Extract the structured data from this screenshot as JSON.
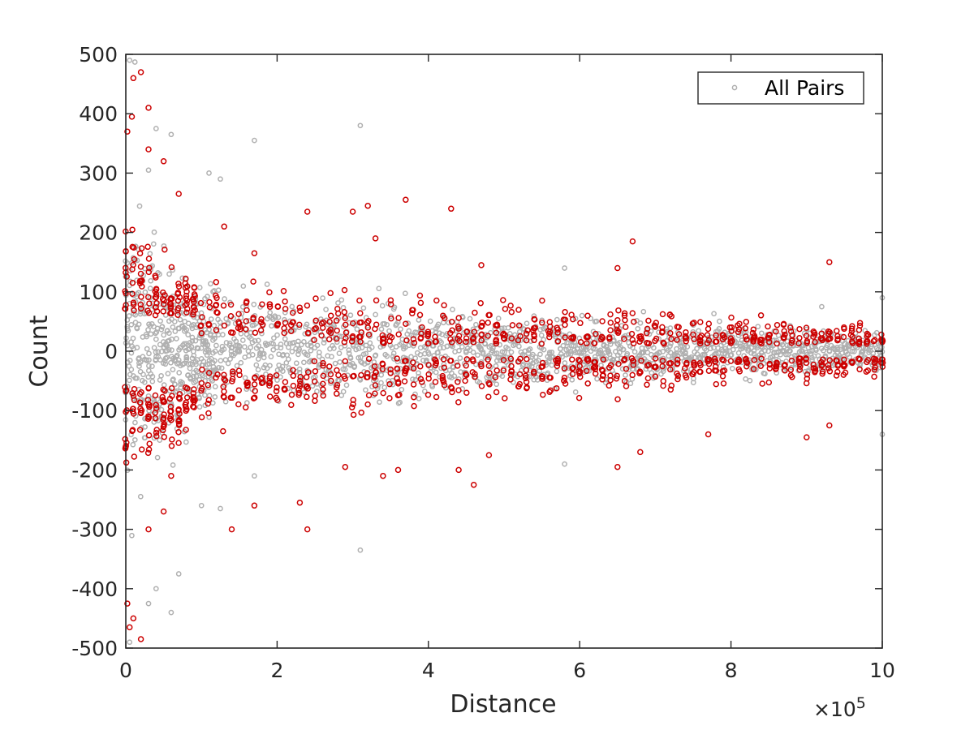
{
  "chart_data": {
    "type": "scatter",
    "title": "",
    "xlabel": "Distance",
    "ylabel": "Count",
    "xlim": [
      0,
      1000000
    ],
    "ylim": [
      -500,
      500
    ],
    "x_ticks": [
      0,
      200000,
      400000,
      600000,
      800000,
      1000000
    ],
    "x_tick_labels": [
      "0",
      "2",
      "4",
      "6",
      "8",
      "10"
    ],
    "x_exponent_label": {
      "base": "×10",
      "power": "5"
    },
    "y_ticks": [
      -500,
      -400,
      -300,
      -200,
      -100,
      0,
      100,
      200,
      300,
      400,
      500
    ],
    "y_tick_labels": [
      "-500",
      "-400",
      "-300",
      "-200",
      "-100",
      "0",
      "100",
      "200",
      "300",
      "400",
      "500"
    ],
    "grid": false,
    "box": true,
    "legend": {
      "position": "top-right",
      "entries": [
        "All Pairs"
      ]
    },
    "series": [
      {
        "name": "All Pairs",
        "marker": "circle-open",
        "color": "#b0b0b0",
        "description_band": "dense symmetric cloud around 0 whose spread narrows with distance",
        "band_envelope": [
          [
            0,
            280
          ],
          [
            50000,
            160
          ],
          [
            100000,
            110
          ],
          [
            200000,
            90
          ],
          [
            400000,
            75
          ],
          [
            600000,
            55
          ],
          [
            800000,
            45
          ],
          [
            1000000,
            35
          ]
        ],
        "outliers": [
          [
            5000,
            490
          ],
          [
            12000,
            487
          ],
          [
            30000,
            305
          ],
          [
            40000,
            375
          ],
          [
            60000,
            365
          ],
          [
            110000,
            300
          ],
          [
            125000,
            290
          ],
          [
            170000,
            355
          ],
          [
            310000,
            380
          ],
          [
            580000,
            140
          ],
          [
            920000,
            75
          ],
          [
            1000000,
            90
          ],
          [
            5000,
            -490
          ],
          [
            30000,
            -425
          ],
          [
            40000,
            -400
          ],
          [
            60000,
            -440
          ],
          [
            70000,
            -375
          ],
          [
            100000,
            -260
          ],
          [
            125000,
            -265
          ],
          [
            170000,
            -210
          ],
          [
            310000,
            -335
          ],
          [
            580000,
            -190
          ],
          [
            1000000,
            -140
          ]
        ]
      },
      {
        "name": "",
        "marker": "circle-open",
        "color": "#cc0000",
        "description_band": "subset of pairs forming vertical clusters; gap near 0 at small distance",
        "band_envelope": [
          [
            0,
            200
          ],
          [
            50000,
            150
          ],
          [
            100000,
            100
          ],
          [
            200000,
            90
          ],
          [
            400000,
            80
          ],
          [
            600000,
            60
          ],
          [
            800000,
            50
          ],
          [
            1000000,
            40
          ]
        ],
        "outliers": [
          [
            2000,
            370
          ],
          [
            8000,
            395
          ],
          [
            10000,
            460
          ],
          [
            20000,
            470
          ],
          [
            30000,
            410
          ],
          [
            30000,
            340
          ],
          [
            50000,
            320
          ],
          [
            70000,
            265
          ],
          [
            130000,
            210
          ],
          [
            170000,
            165
          ],
          [
            240000,
            235
          ],
          [
            300000,
            235
          ],
          [
            320000,
            245
          ],
          [
            330000,
            190
          ],
          [
            370000,
            255
          ],
          [
            430000,
            240
          ],
          [
            470000,
            145
          ],
          [
            650000,
            140
          ],
          [
            670000,
            185
          ],
          [
            930000,
            150
          ],
          [
            2000,
            -425
          ],
          [
            5000,
            -465
          ],
          [
            10000,
            -450
          ],
          [
            20000,
            -485
          ],
          [
            30000,
            -300
          ],
          [
            50000,
            -270
          ],
          [
            60000,
            -210
          ],
          [
            140000,
            -300
          ],
          [
            170000,
            -260
          ],
          [
            230000,
            -255
          ],
          [
            240000,
            -300
          ],
          [
            290000,
            -195
          ],
          [
            340000,
            -210
          ],
          [
            360000,
            -200
          ],
          [
            440000,
            -200
          ],
          [
            460000,
            -225
          ],
          [
            480000,
            -175
          ],
          [
            650000,
            -195
          ],
          [
            680000,
            -170
          ],
          [
            770000,
            -140
          ],
          [
            900000,
            -145
          ],
          [
            930000,
            -125
          ]
        ]
      }
    ]
  }
}
